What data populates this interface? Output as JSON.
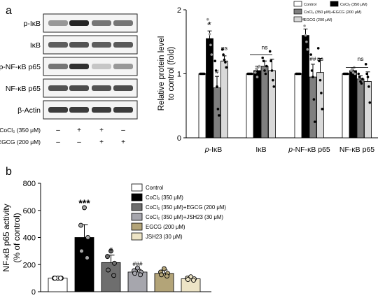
{
  "panel_a": {
    "label": "a",
    "blot_rows": [
      "p-IκB",
      "IκB",
      "p-NF-κB p65",
      "NF-κB p65",
      "β-Actin"
    ],
    "treatments": [
      {
        "label": "CoCl₂ (350 μM)",
        "signs": [
          "–",
          "+",
          "+",
          "–"
        ]
      },
      {
        "label": "EGCG (200 μM)",
        "signs": [
          "–",
          "–",
          "+",
          "+"
        ]
      }
    ]
  },
  "panel_b": {
    "label": "b"
  },
  "chart_data": [
    {
      "type": "bar",
      "panel": "a",
      "ylabel": "Relative protein level to control (fold)",
      "ylabel_lines": [
        "Relative protein level",
        "to control (fold)"
      ],
      "ylim": [
        0,
        2
      ],
      "yticks": [
        "0",
        "1",
        "2"
      ],
      "categories": [
        "p-IκB",
        "IκB",
        "p-NF-κB p65",
        "NF-κB p65"
      ],
      "legend": [
        "Control",
        "CoCl₂ (350 μM)",
        "CoCl₂ (350 μM)+EGCG (200 μM)",
        "EGCG (200 μM)"
      ],
      "legend_position": "top-right",
      "series": [
        {
          "name": "Control",
          "color": "#ffffff",
          "values": [
            1.0,
            1.0,
            1.0,
            1.0
          ],
          "errors": [
            0,
            0,
            0,
            0
          ]
        },
        {
          "name": "CoCl₂ (350 μM)",
          "color": "#000000",
          "values": [
            1.55,
            1.05,
            1.6,
            1.05
          ],
          "errors": [
            0.12,
            0.07,
            0.1,
            0.04
          ]
        },
        {
          "name": "CoCl₂ (350 μM)+EGCG (200 μM)",
          "color": "#7f7f7f",
          "values": [
            0.78,
            1.12,
            0.95,
            0.92
          ],
          "errors": [
            0.18,
            0.08,
            0.2,
            0.05
          ]
        },
        {
          "name": "EGCG (200 μM)",
          "color": "#d9d9d9",
          "values": [
            1.2,
            1.05,
            1.02,
            0.88
          ],
          "errors": [
            0.08,
            0.18,
            0.22,
            0.15
          ]
        }
      ],
      "points": [
        [
          [
            1,
            1,
            1,
            1,
            1
          ],
          [
            1,
            1,
            1,
            1,
            1
          ],
          [
            1,
            1,
            1,
            1,
            1
          ],
          [
            1,
            1,
            1,
            1,
            1
          ]
        ],
        [
          [
            1.85,
            1.78,
            1.62,
            1.45,
            1.3
          ],
          [
            1.02,
            1.08,
            0.95,
            1.1,
            1.12
          ],
          [
            1.85,
            1.75,
            1.6,
            1.5,
            1.38
          ],
          [
            1.05,
            1.08,
            1.02,
            1.1,
            1.0
          ]
        ],
        [
          [
            1.2,
            1.05,
            0.8,
            0.45,
            0.35
          ],
          [
            1.25,
            1.2,
            1.05,
            1.0,
            1.12
          ],
          [
            1.3,
            1.05,
            0.95,
            0.6,
            0.25
          ],
          [
            1.0,
            0.95,
            0.88,
            0.85,
            0.92
          ]
        ],
        [
          [
            1.38,
            1.3,
            1.22,
            1.18,
            1.1
          ],
          [
            1.35,
            1.2,
            1.05,
            0.9,
            0.8
          ],
          [
            1.4,
            1.2,
            0.9,
            0.7,
            0.45
          ],
          [
            1.15,
            1.0,
            0.95,
            0.8,
            0.55
          ]
        ]
      ],
      "annotations": [
        {
          "text": "*",
          "category": 0,
          "series": 1,
          "value": 1.72
        },
        {
          "text": "#",
          "category": 0,
          "series": 2,
          "value": 1.0
        },
        {
          "text": "ns",
          "category": 0,
          "series": 3,
          "value": 1.37
        },
        {
          "text": "ns",
          "category": 1,
          "series": 2,
          "value": 1.38
        },
        {
          "text": "##",
          "category": 2,
          "series": 2,
          "value": 1.2
        },
        {
          "text": "ns",
          "category": 2,
          "series": 3,
          "value": 1.2
        },
        {
          "text": "ns",
          "category": 3,
          "series": 2,
          "value": 1.2
        }
      ]
    },
    {
      "type": "bar",
      "panel": "b",
      "ylabel": "NF-κB p65 activity (% of control)",
      "ylabel_lines": [
        "NF-κB p65 activity",
        "(% of control)"
      ],
      "ylim": [
        0,
        800
      ],
      "yticks": [
        "0",
        "200",
        "400",
        "600",
        "800"
      ],
      "legend_position": "top-right",
      "series": [
        {
          "name": "Control",
          "color": "#ffffff",
          "value": 100,
          "error": 0,
          "points": [
            100,
            100,
            100,
            100,
            100
          ],
          "annotation": ""
        },
        {
          "name": "CoCl₂ (350 μM)",
          "color": "#000000",
          "value": 400,
          "error": 95,
          "points": [
            620,
            490,
            400,
            300,
            250
          ],
          "annotation": "***"
        },
        {
          "name": "CoCl₂ (350 μM)+EGCG (200 μM)",
          "color": "#6e6e6e",
          "value": 215,
          "error": 55,
          "points": [
            300,
            260,
            210,
            160,
            120
          ],
          "annotation": "#"
        },
        {
          "name": "CoCl₂ (350 μM)+JSH23 (30 μM)",
          "color": "#a6a6ad",
          "value": 145,
          "error": 20,
          "points": [
            175,
            155,
            145,
            135,
            125
          ],
          "annotation": "###"
        },
        {
          "name": "EGCG (200 μM)",
          "color": "#b3a478",
          "value": 135,
          "error": 25,
          "points": [
            170,
            145,
            135,
            125,
            115
          ],
          "annotation": ""
        },
        {
          "name": "JSH23 (30 μM)",
          "color": "#ede4c6",
          "value": 95,
          "error": 10,
          "points": [
            110,
            100,
            95,
            90,
            85
          ],
          "annotation": ""
        }
      ]
    }
  ]
}
